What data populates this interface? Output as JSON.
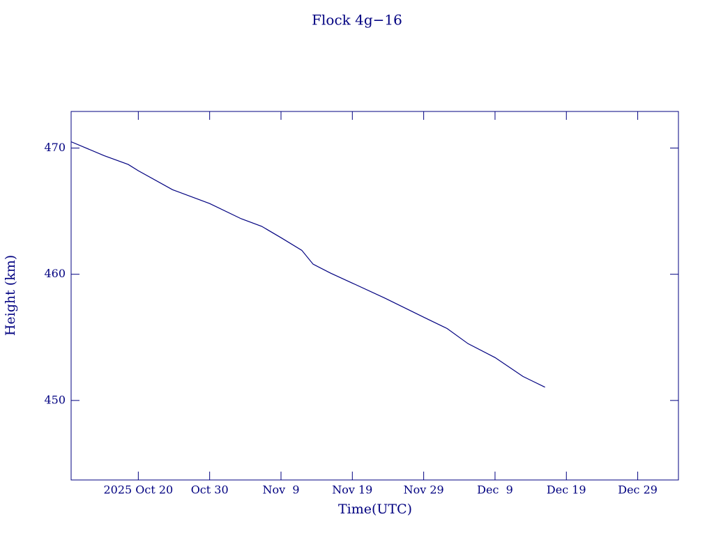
{
  "chart_data": {
    "type": "line",
    "title": "Flock 4g−16",
    "xlabel": "Time(UTC)",
    "ylabel": "Height (km)",
    "x": [
      "2025-10-10T14:00",
      "2025-10-15T05:00",
      "2025-10-18T14:00",
      "2025-10-20T00:00",
      "2025-10-24T19:00",
      "2025-10-30T00:00",
      "2025-11-03T10:00",
      "2025-11-06T07:00",
      "2025-11-09T00:00",
      "2025-11-11T22:00",
      "2025-11-13T12:00",
      "2025-11-15T22:00",
      "2025-11-19T00:00",
      "2025-11-23T14:00",
      "2025-11-29T00:00",
      "2025-12-02T07:00",
      "2025-12-05T05:00",
      "2025-12-09T00:00",
      "2025-12-12T22:00",
      "2025-12-16T00:00"
    ],
    "series": [
      {
        "name": "Height",
        "color": "#000080",
        "values": [
          470.5,
          469.4,
          468.7,
          468.2,
          466.7,
          465.6,
          464.4,
          463.8,
          462.9,
          461.9,
          460.8,
          460.1,
          459.3,
          458.1,
          456.6,
          455.7,
          454.5,
          453.4,
          451.9,
          451.05
        ]
      }
    ],
    "xlim": [
      "2025-10-10T14:00",
      "2026-01-03T17:00"
    ],
    "xticks": [
      {
        "value": "2025-10-20",
        "label": "2025 Oct 20"
      },
      {
        "value": "2025-10-30",
        "label": "Oct 30"
      },
      {
        "value": "2025-11-09",
        "label": "Nov  9"
      },
      {
        "value": "2025-11-19",
        "label": "Nov 19"
      },
      {
        "value": "2025-11-29",
        "label": "Nov 29"
      },
      {
        "value": "2025-12-09",
        "label": "Dec  9"
      },
      {
        "value": "2025-12-19",
        "label": "Dec 19"
      },
      {
        "value": "2025-12-29",
        "label": "Dec 29"
      }
    ],
    "ylim": [
      443.7,
      472.9
    ],
    "yticks": [
      450,
      460,
      470
    ],
    "grid": false
  }
}
